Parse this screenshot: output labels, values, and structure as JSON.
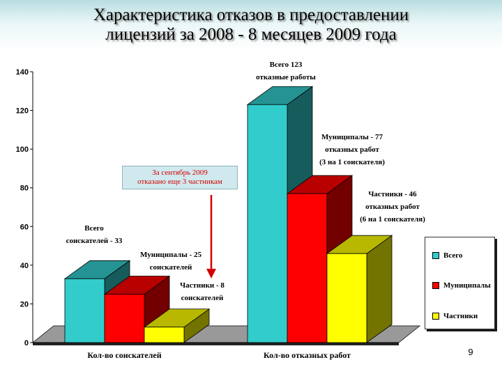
{
  "title": {
    "line1": "Характеристика отказов в предоставлении",
    "line2": "лицензий за 2008 - 8 месяцев 2009 года"
  },
  "chart_data": {
    "type": "bar",
    "categories": [
      "Кол-во соискателей",
      "Кол-во отказных работ"
    ],
    "series": [
      {
        "name": "Всего",
        "values": [
          33,
          123
        ],
        "color": "#33cccc"
      },
      {
        "name": "Муниципалы",
        "values": [
          25,
          77
        ],
        "color": "#ff0000"
      },
      {
        "name": "Частники",
        "values": [
          8,
          46
        ],
        "color": "#ffff00"
      }
    ],
    "ylim": [
      0,
      140
    ],
    "yticks": [
      "0",
      "20",
      "40",
      "60",
      "80",
      "100",
      "120",
      "140"
    ],
    "legend_position": "right",
    "annotations": [
      {
        "lines": [
          "Всего",
          "соискателей - 33"
        ]
      },
      {
        "lines": [
          "Муниципалы - 25",
          "соискателей"
        ]
      },
      {
        "lines": [
          "Частники - 8",
          "соискателей"
        ]
      },
      {
        "lines": [
          "Всего 123",
          "отказные работы"
        ]
      },
      {
        "lines": [
          "Муниципалы - 77",
          "отказных работ",
          "(3 на 1 соискателя)"
        ]
      },
      {
        "lines": [
          "Частники - 46",
          "отказных работ",
          "(6 на 1 соискателя)"
        ]
      }
    ]
  },
  "note": {
    "line1": "За сентябрь 2009",
    "line2": "отказано еще 3 частникам",
    "text_color": "#d40000"
  },
  "page_number": "9"
}
